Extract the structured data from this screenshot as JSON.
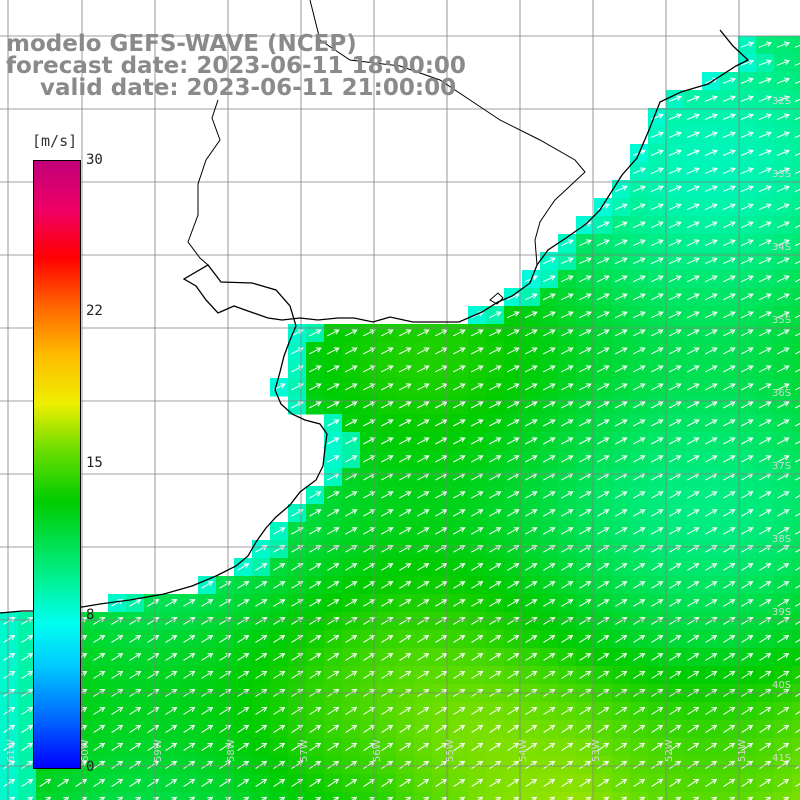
{
  "title": {
    "model": "modelo GEFS-WAVE (NCEP)",
    "forecast": "forecast date: 2023-06-11 18:00:00",
    "valid": "valid date: 2023-06-11 21:00:00"
  },
  "colorbar": {
    "unit": "[m/s]",
    "ticks": [
      "30",
      "22",
      "15",
      "8",
      "0"
    ],
    "tick_values": [
      30,
      22,
      15,
      8,
      0
    ],
    "range": [
      0,
      30
    ],
    "colors": [
      "#0000ff",
      "#00ffee",
      "#00cc00",
      "#eeee00",
      "#ff0000",
      "#c2007a"
    ]
  },
  "grid_labels": {
    "lat": [
      "32S",
      "33S",
      "34S",
      "35S",
      "36S",
      "37S",
      "38S",
      "39S",
      "40S",
      "41S"
    ],
    "lon": [
      "61W",
      "60W",
      "59W",
      "58W",
      "57W",
      "56W",
      "55W",
      "54W",
      "53W",
      "52W",
      "51W"
    ]
  },
  "colors": {
    "land": "#ffffff",
    "coast": "#000000",
    "grid": "#808080",
    "arrow": "#ffffff"
  }
}
